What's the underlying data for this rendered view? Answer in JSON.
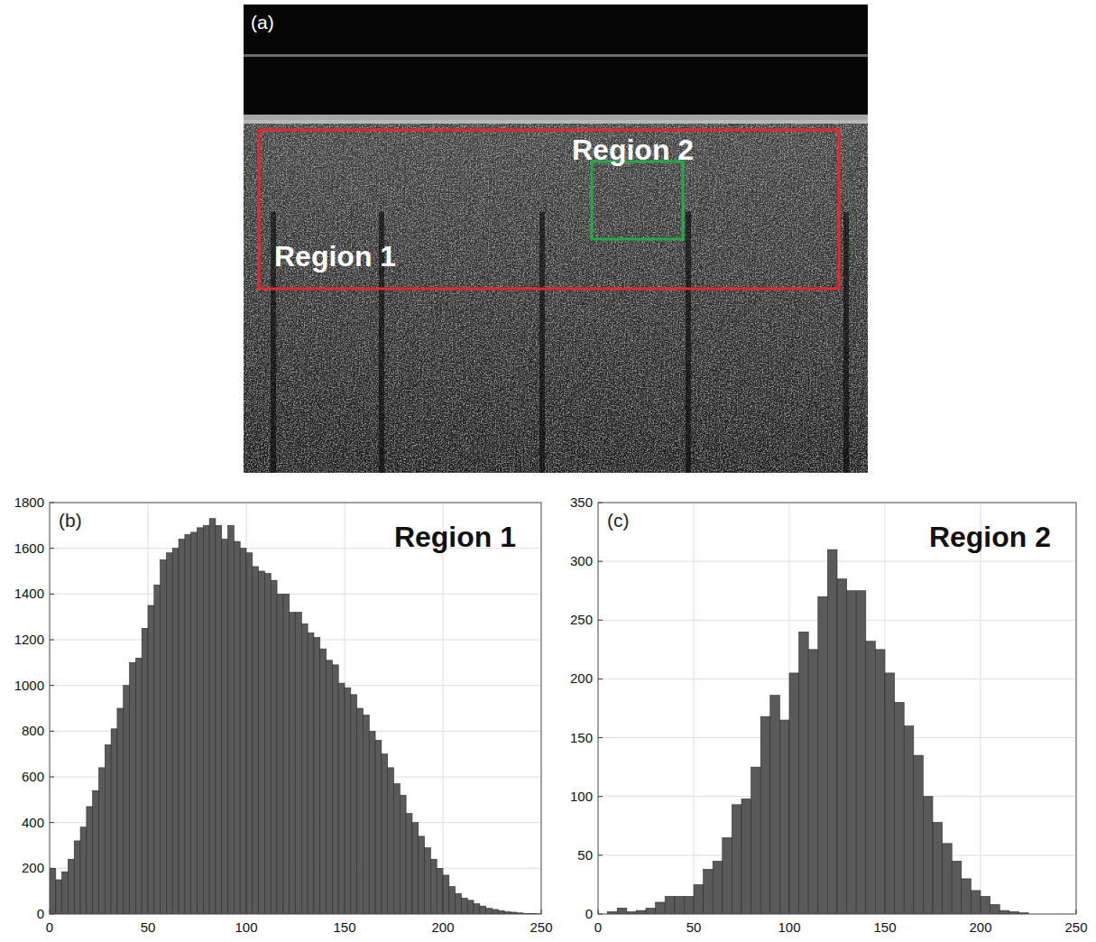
{
  "image_panel": {
    "label": "(a)",
    "regions": [
      {
        "label": "Region 1",
        "color": "#e8262b"
      },
      {
        "label": "Region 2",
        "color": "#27a845"
      }
    ]
  },
  "chart_data": [
    {
      "type": "histogram",
      "title": "Region 1",
      "annotations": [
        "(b)"
      ],
      "color": "#5a5a5a",
      "grid": true,
      "bins": [
        0,
        3.125,
        6.25,
        9.375,
        12.5,
        15.625,
        18.75,
        21.875,
        25,
        28.125,
        31.25,
        34.375,
        37.5,
        40.625,
        43.75,
        46.875,
        50,
        53.125,
        56.25,
        59.375,
        62.5,
        65.625,
        68.75,
        71.875,
        75,
        78.125,
        81.25,
        84.375,
        87.5,
        90.625,
        93.75,
        96.875,
        100,
        103.125,
        106.25,
        109.375,
        112.5,
        115.625,
        118.75,
        121.875,
        125,
        128.125,
        131.25,
        134.375,
        137.5,
        140.625,
        143.75,
        146.875,
        150,
        153.125,
        156.25,
        159.375,
        162.5,
        165.625,
        168.75,
        171.875,
        175,
        178.125,
        181.25,
        184.375,
        187.5,
        190.625,
        193.75,
        196.875,
        200,
        203.125,
        206.25,
        209.375,
        212.5,
        215.625,
        218.75,
        221.875,
        225,
        228.125,
        231.25,
        234.375,
        237.5,
        240.625,
        243.75,
        246.875,
        250
      ],
      "values": [
        200,
        150,
        185,
        240,
        320,
        380,
        470,
        540,
        640,
        740,
        810,
        900,
        1000,
        1100,
        1120,
        1250,
        1350,
        1440,
        1550,
        1580,
        1600,
        1640,
        1660,
        1670,
        1690,
        1700,
        1730,
        1700,
        1640,
        1700,
        1630,
        1600,
        1580,
        1520,
        1500,
        1490,
        1460,
        1400,
        1400,
        1320,
        1320,
        1270,
        1230,
        1210,
        1160,
        1110,
        1090,
        1010,
        990,
        960,
        900,
        870,
        800,
        760,
        700,
        640,
        570,
        520,
        440,
        400,
        340,
        290,
        240,
        200,
        170,
        120,
        90,
        70,
        60,
        45,
        35,
        25,
        20,
        15,
        10,
        8,
        5,
        3,
        2,
        1
      ],
      "xlim": [
        0,
        250
      ],
      "xticks": [
        0,
        50,
        100,
        150,
        200,
        250
      ],
      "ylim": [
        0,
        1800
      ],
      "yticks": [
        0,
        200,
        400,
        600,
        800,
        1000,
        1200,
        1400,
        1600,
        1800
      ]
    },
    {
      "type": "histogram",
      "title": "Region 2",
      "annotations": [
        "(c)"
      ],
      "color": "#5a5a5a",
      "grid": true,
      "bins": [
        0,
        5,
        10,
        15,
        20,
        25,
        30,
        35,
        40,
        45,
        50,
        55,
        60,
        65,
        70,
        75,
        80,
        85,
        90,
        95,
        100,
        105,
        110,
        115,
        120,
        125,
        130,
        135,
        140,
        145,
        150,
        155,
        160,
        165,
        170,
        175,
        180,
        185,
        190,
        195,
        200,
        205,
        210,
        215,
        220,
        225,
        230
      ],
      "values": [
        0,
        2,
        5,
        2,
        3,
        5,
        10,
        15,
        15,
        15,
        25,
        38,
        45,
        65,
        93,
        98,
        125,
        168,
        186,
        165,
        205,
        240,
        225,
        270,
        310,
        285,
        275,
        275,
        232,
        225,
        205,
        180,
        160,
        135,
        100,
        78,
        60,
        45,
        30,
        20,
        15,
        8,
        3,
        2,
        1,
        0
      ],
      "xlim": [
        0,
        250
      ],
      "xticks": [
        0,
        50,
        100,
        150,
        200,
        250
      ],
      "ylim": [
        0,
        350
      ],
      "yticks": [
        0,
        50,
        100,
        150,
        200,
        250,
        300,
        350
      ]
    }
  ]
}
